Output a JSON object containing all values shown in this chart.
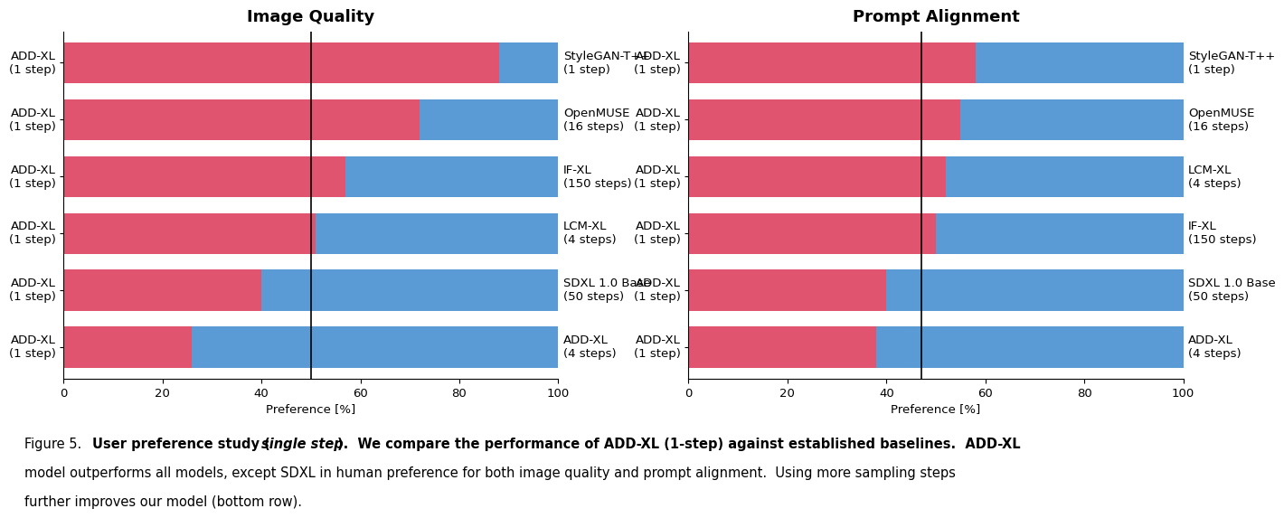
{
  "image_quality": {
    "title": "Image Quality",
    "rows": [
      {
        "left_label": "ADD-XL\n(1 step)",
        "right_label": "StyleGAN-T++\n(1 step)",
        "red": 88,
        "blue": 12
      },
      {
        "left_label": "ADD-XL\n(1 step)",
        "right_label": "OpenMUSE\n(16 steps)",
        "red": 72,
        "blue": 28
      },
      {
        "left_label": "ADD-XL\n(1 step)",
        "right_label": "IF-XL\n(150 steps)",
        "red": 57,
        "blue": 43
      },
      {
        "left_label": "ADD-XL\n(1 step)",
        "right_label": "LCM-XL\n(4 steps)",
        "red": 51,
        "blue": 49
      },
      {
        "left_label": "ADD-XL\n(1 step)",
        "right_label": "SDXL 1.0 Base\n(50 steps)",
        "red": 40,
        "blue": 60
      },
      {
        "left_label": "ADD-XL\n(1 step)",
        "right_label": "ADD-XL\n(4 steps)",
        "red": 26,
        "blue": 74
      }
    ],
    "vline": 50,
    "xlabel": "Preference [%]",
    "xlim": [
      0,
      100
    ],
    "xticks": [
      0,
      20,
      40,
      60,
      80,
      100
    ]
  },
  "prompt_alignment": {
    "title": "Prompt Alignment",
    "rows": [
      {
        "left_label": "ADD-XL\n(1 step)",
        "right_label": "StyleGAN-T++\n(1 step)",
        "red": 58,
        "blue": 42
      },
      {
        "left_label": "ADD-XL\n(1 step)",
        "right_label": "OpenMUSE\n(16 steps)",
        "red": 55,
        "blue": 45
      },
      {
        "left_label": "ADD-XL\n(1 step)",
        "right_label": "LCM-XL\n(4 steps)",
        "red": 52,
        "blue": 48
      },
      {
        "left_label": "ADD-XL\n(1 step)",
        "right_label": "IF-XL\n(150 steps)",
        "red": 50,
        "blue": 50
      },
      {
        "left_label": "ADD-XL\n(1 step)",
        "right_label": "SDXL 1.0 Base\n(50 steps)",
        "red": 40,
        "blue": 60
      },
      {
        "left_label": "ADD-XL\n(1 step)",
        "right_label": "ADD-XL\n(4 steps)",
        "red": 38,
        "blue": 62
      }
    ],
    "vline": 47,
    "xlabel": "Preference [%]",
    "xlim": [
      0,
      100
    ],
    "xticks": [
      0,
      20,
      40,
      60,
      80,
      100
    ]
  },
  "red_color": "#E05470",
  "blue_color": "#5B9BD5",
  "bar_height": 0.72,
  "title_fontsize": 13,
  "label_fontsize": 9.5,
  "tick_fontsize": 9.5,
  "background_color": "#ffffff"
}
